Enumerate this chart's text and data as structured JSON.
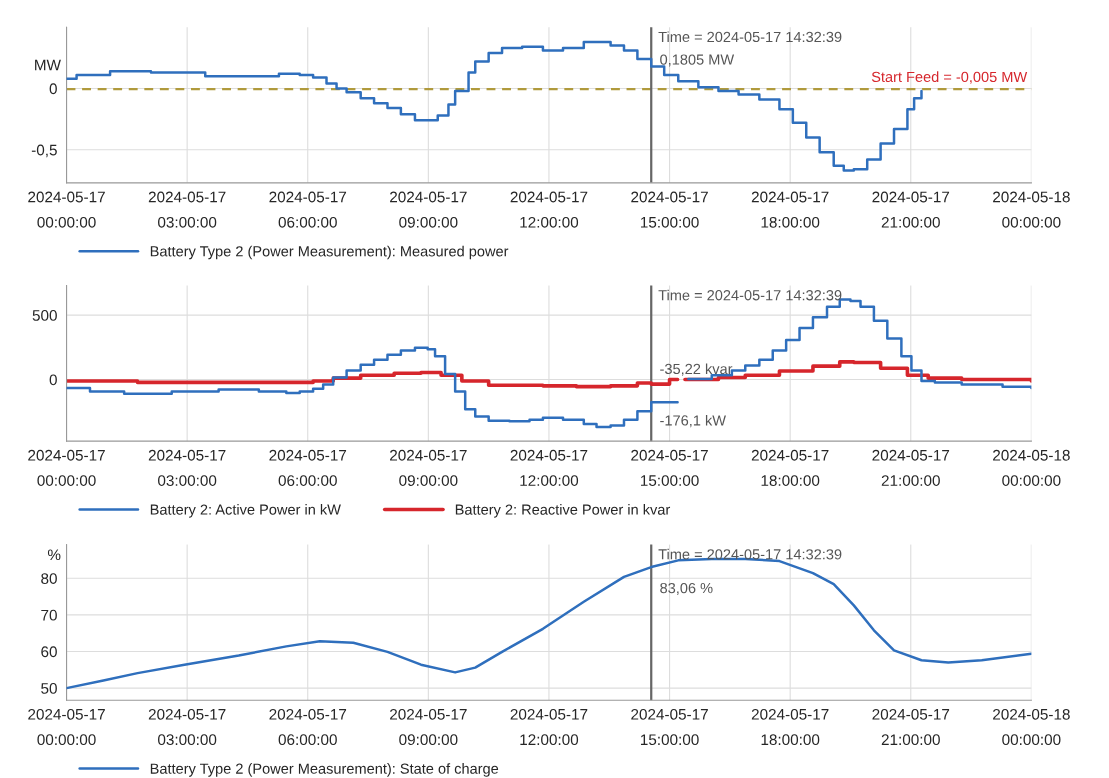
{
  "chart_data": [
    {
      "type": "step",
      "ylabel": "MW",
      "xlim": [
        "2024-05-17T00:00",
        "2024-05-18T00:00"
      ],
      "ylim": [
        -0.77,
        0.5
      ],
      "xticks": [
        {
          "value": "2024-05-17T00:00",
          "label": "2024-05-17\n00:00:00"
        },
        {
          "value": "2024-05-17T03:00",
          "label": "2024-05-17\n03:00:00"
        },
        {
          "value": "2024-05-17T06:00",
          "label": "2024-05-17\n06:00:00"
        },
        {
          "value": "2024-05-17T09:00",
          "label": "2024-05-17\n09:00:00"
        },
        {
          "value": "2024-05-17T12:00",
          "label": "2024-05-17\n12:00:00"
        },
        {
          "value": "2024-05-17T15:00",
          "label": "2024-05-17\n15:00:00"
        },
        {
          "value": "2024-05-17T18:00",
          "label": "2024-05-17\n18:00:00"
        },
        {
          "value": "2024-05-17T21:00",
          "label": "2024-05-17\n21:00:00"
        },
        {
          "value": "2024-05-18T00:00",
          "label": "2024-05-18\n00:00:00"
        }
      ],
      "yticks": [
        {
          "value": -0.5,
          "label": "-0,5"
        },
        0
      ],
      "grid": true,
      "legend": "bottom left",
      "series": [
        {
          "name": "Battery Type 2 (Power Measurement): Measured power",
          "color": "#2f6fbd",
          "x": [
            "2024-05-17T00:00",
            "2024-05-17T00:15",
            "2024-05-17T01:05",
            "2024-05-17T02:06",
            "2024-05-17T03:27",
            "2024-05-17T04:27",
            "2024-05-17T05:17",
            "2024-05-17T05:48",
            "2024-05-17T06:08",
            "2024-05-17T06:28",
            "2024-05-17T06:43",
            "2024-05-17T06:58",
            "2024-05-17T07:19",
            "2024-05-17T07:39",
            "2024-05-17T07:59",
            "2024-05-17T08:19",
            "2024-05-17T08:40",
            "2024-05-17T08:59",
            "2024-05-17T09:14",
            "2024-05-17T09:30",
            "2024-05-17T09:40",
            "2024-05-17T10:00",
            "2024-05-17T10:10",
            "2024-05-17T10:30",
            "2024-05-17T10:50",
            "2024-05-17T11:20",
            "2024-05-17T11:51",
            "2024-05-17T12:21",
            "2024-05-17T12:52",
            "2024-05-17T13:11",
            "2024-05-17T13:32",
            "2024-05-17T13:52",
            "2024-05-17T14:12",
            "2024-05-17T14:32:39",
            "2024-05-17T14:52",
            "2024-05-17T15:13",
            "2024-05-17T15:43",
            "2024-05-17T16:13",
            "2024-05-17T16:43",
            "2024-05-17T17:14",
            "2024-05-17T17:44",
            "2024-05-17T18:04",
            "2024-05-17T18:24",
            "2024-05-17T18:44",
            "2024-05-17T19:05",
            "2024-05-17T19:20",
            "2024-05-17T19:35",
            "2024-05-17T19:55",
            "2024-05-17T20:15",
            "2024-05-17T20:35",
            "2024-05-17T20:55",
            "2024-05-17T21:05",
            "2024-05-17T21:16"
          ],
          "values": [
            0.08,
            0.11,
            0.14,
            0.13,
            0.1,
            0.1,
            0.12,
            0.11,
            0.09,
            0.04,
            0,
            -0.03,
            -0.08,
            -0.12,
            -0.16,
            -0.21,
            -0.26,
            -0.26,
            -0.22,
            -0.13,
            -0.02,
            0.13,
            0.22,
            0.29,
            0.33,
            0.34,
            0.31,
            0.33,
            0.38,
            0.38,
            0.35,
            0.31,
            0.24,
            0.1805,
            0.11,
            0.06,
            0.01,
            -0.02,
            -0.05,
            -0.09,
            -0.17,
            -0.28,
            -0.4,
            -0.52,
            -0.63,
            -0.67,
            -0.66,
            -0.58,
            -0.45,
            -0.33,
            -0.17,
            -0.08,
            -0.02
          ]
        }
      ],
      "ref_lines": [
        {
          "axis": "y",
          "value": -0.005,
          "label": "Start Feed = -0,005 MW",
          "color": "#b09a3c",
          "line_style": "dashed"
        },
        {
          "axis": "x",
          "value": "2024-05-17T14:32:39",
          "label": "Time = 2024-05-17 14:32:39",
          "color": "#666666",
          "line_style": "solid"
        }
      ],
      "annotations": [
        {
          "text": "0,1805 MW",
          "x": "2024-05-17T14:32:39",
          "y": 0.1805
        }
      ]
    },
    {
      "type": "step",
      "xlim": [
        "2024-05-17T00:00",
        "2024-05-18T00:00"
      ],
      "ylim": [
        -478,
        730
      ],
      "xticks": [
        {
          "value": "2024-05-17T00:00",
          "label": "2024-05-17\n00:00:00"
        },
        {
          "value": "2024-05-17T03:00",
          "label": "2024-05-17\n03:00:00"
        },
        {
          "value": "2024-05-17T06:00",
          "label": "2024-05-17\n06:00:00"
        },
        {
          "value": "2024-05-17T09:00",
          "label": "2024-05-17\n09:00:00"
        },
        {
          "value": "2024-05-17T12:00",
          "label": "2024-05-17\n12:00:00"
        },
        {
          "value": "2024-05-17T15:00",
          "label": "2024-05-17\n15:00:00"
        },
        {
          "value": "2024-05-17T18:00",
          "label": "2024-05-17\n18:00:00"
        },
        {
          "value": "2024-05-17T21:00",
          "label": "2024-05-17\n21:00:00"
        },
        {
          "value": "2024-05-18T00:00",
          "label": "2024-05-18\n00:00:00"
        }
      ],
      "yticks": [
        0,
        500
      ],
      "grid": true,
      "legend": "bottom left",
      "series": [
        {
          "name": "Battery 2: Active Power in kW",
          "color": "#2f6fbd",
          "x": [
            "2024-05-17T00:00",
            "2024-05-17T00:35",
            "2024-05-17T01:26",
            "2024-05-17T02:37",
            "2024-05-17T03:47",
            "2024-05-17T04:47",
            "2024-05-17T05:28",
            "2024-05-17T05:48",
            "2024-05-17T06:08",
            "2024-05-17T06:23",
            "2024-05-17T06:38",
            "2024-05-17T06:58",
            "2024-05-17T07:19",
            "2024-05-17T07:39",
            "2024-05-17T07:59",
            "2024-05-17T08:19",
            "2024-05-17T08:40",
            "2024-05-17T08:59",
            "2024-05-17T09:10",
            "2024-05-17T09:25",
            "2024-05-17T09:40",
            "2024-05-17T09:55",
            "2024-05-17T10:10",
            "2024-05-17T10:30",
            "2024-05-17T11:01",
            "2024-05-17T11:31",
            "2024-05-17T11:51",
            "2024-05-17T12:21",
            "2024-05-17T12:52",
            "2024-05-17T13:11",
            "2024-05-17T13:32",
            "2024-05-17T13:52",
            "2024-05-17T14:12",
            "2024-05-17T14:32:39",
            "2024-05-17T14:47",
            "2024-05-17T15:12",
            "2024-05-17T15:28",
            "2024-05-17T16:03",
            "2024-05-17T16:33",
            "2024-05-17T16:53",
            "2024-05-17T17:14",
            "2024-05-17T17:34",
            "2024-05-17T17:54",
            "2024-05-17T18:14",
            "2024-05-17T18:34",
            "2024-05-17T18:55",
            "2024-05-17T19:14",
            "2024-05-17T19:30",
            "2024-05-17T19:45",
            "2024-05-17T20:05",
            "2024-05-17T20:25",
            "2024-05-17T20:46",
            "2024-05-17T21:01",
            "2024-05-17T21:16",
            "2024-05-17T21:36",
            "2024-05-17T22:16",
            "2024-05-17T23:17",
            "2024-05-18T00:00"
          ],
          "values": [
            -66,
            -93,
            -110,
            -93,
            -77,
            -93,
            -104,
            -93,
            -71,
            -38,
            16,
            71,
            115,
            154,
            192,
            225,
            247,
            236,
            181,
            44,
            -93,
            -231,
            -286,
            -319,
            -324,
            -313,
            -297,
            -313,
            -346,
            -368,
            -357,
            -313,
            -247,
            -176.1,
            -176,
            null,
            5,
            33,
            71,
            110,
            154,
            225,
            308,
            401,
            484,
            566,
            621,
            610,
            566,
            456,
            319,
            181,
            71,
            -11,
            -22,
            -38,
            -55,
            -66
          ]
        },
        {
          "name": "Battery 2: Reactive Power in kvar",
          "color": "#d6262c",
          "x": [
            "2024-05-17T00:00",
            "2024-05-17T01:46",
            "2024-05-17T03:27",
            "2024-05-17T05:08",
            "2024-05-17T06:08",
            "2024-05-17T06:38",
            "2024-05-17T07:19",
            "2024-05-17T08:09",
            "2024-05-17T08:49",
            "2024-05-17T09:19",
            "2024-05-17T09:50",
            "2024-05-17T10:30",
            "2024-05-17T11:51",
            "2024-05-17T12:41",
            "2024-05-17T13:32",
            "2024-05-17T14:12",
            "2024-05-17T14:32:39",
            "2024-05-17T15:00",
            "2024-05-17T15:12",
            "2024-05-17T15:23",
            "2024-05-17T16:13",
            "2024-05-17T16:53",
            "2024-05-17T17:44",
            "2024-05-17T18:34",
            "2024-05-17T19:14",
            "2024-05-17T19:35",
            "2024-05-17T20:15",
            "2024-05-17T20:55",
            "2024-05-17T21:26",
            "2024-05-17T22:16",
            "2024-05-18T00:00"
          ],
          "values": [
            -11,
            -22,
            -22,
            -22,
            -11,
            11,
            33,
            49,
            55,
            33,
            -11,
            -44,
            -49,
            -55,
            -49,
            -27,
            -35.22,
            0,
            null,
            0,
            16,
            33,
            66,
            104,
            137,
            132,
            88,
            33,
            11,
            0,
            -11
          ]
        }
      ],
      "ref_lines": [
        {
          "axis": "x",
          "value": "2024-05-17T14:32:39",
          "label": "Time = 2024-05-17 14:32:39",
          "color": "#666666",
          "line_style": "solid"
        }
      ],
      "annotations": [
        {
          "text": "-35,22 kvar",
          "x": "2024-05-17T14:32:39",
          "y": -35.22
        },
        {
          "text": "-176,1 kW",
          "x": "2024-05-17T14:32:39",
          "y": -176.1
        }
      ]
    },
    {
      "type": "line",
      "ylabel": "%",
      "xlim": [
        "2024-05-17T00:00",
        "2024-05-18T00:00"
      ],
      "ylim": [
        46.7,
        89.2
      ],
      "xticks": [
        {
          "value": "2024-05-17T00:00",
          "label": "2024-05-17\n00:00:00"
        },
        {
          "value": "2024-05-17T03:00",
          "label": "2024-05-17\n03:00:00"
        },
        {
          "value": "2024-05-17T06:00",
          "label": "2024-05-17\n06:00:00"
        },
        {
          "value": "2024-05-17T09:00",
          "label": "2024-05-17\n09:00:00"
        },
        {
          "value": "2024-05-17T12:00",
          "label": "2024-05-17\n12:00:00"
        },
        {
          "value": "2024-05-17T15:00",
          "label": "2024-05-17\n15:00:00"
        },
        {
          "value": "2024-05-17T18:00",
          "label": "2024-05-17\n18:00:00"
        },
        {
          "value": "2024-05-17T21:00",
          "label": "2024-05-17\n21:00:00"
        },
        {
          "value": "2024-05-18T00:00",
          "label": "2024-05-18\n00:00:00"
        }
      ],
      "yticks": [
        50,
        60,
        70,
        80
      ],
      "grid": true,
      "legend": "bottom left",
      "series": [
        {
          "name": "Battery Type 2 (Power Measurement): State of charge",
          "color": "#2f6fbd",
          "x": [
            "2024-05-17T00:00",
            "2024-05-17T00:55",
            "2024-05-17T01:46",
            "2024-05-17T02:56",
            "2024-05-17T04:17",
            "2024-05-17T05:28",
            "2024-05-17T06:18",
            "2024-05-17T07:08",
            "2024-05-17T07:59",
            "2024-05-17T08:49",
            "2024-05-17T09:40",
            "2024-05-17T10:10",
            "2024-05-17T10:50",
            "2024-05-17T11:51",
            "2024-05-17T12:52",
            "2024-05-17T13:52",
            "2024-05-17T14:32:39",
            "2024-05-17T15:13",
            "2024-05-17T16:03",
            "2024-05-17T16:53",
            "2024-05-17T17:44",
            "2024-05-17T18:34",
            "2024-05-17T19:05",
            "2024-05-17T19:35",
            "2024-05-17T20:05",
            "2024-05-17T20:35",
            "2024-05-17T21:16",
            "2024-05-17T21:56",
            "2024-05-17T22:46",
            "2024-05-18T00:00"
          ],
          "values": [
            50,
            52.1,
            54.1,
            56.4,
            58.9,
            61.4,
            62.8,
            62.4,
            59.9,
            56.4,
            54.3,
            55.6,
            59.9,
            66.2,
            73.6,
            80.4,
            83.06,
            84.9,
            85.3,
            85.3,
            84.7,
            81.4,
            78.4,
            72.6,
            65.8,
            60.3,
            57.6,
            57.0,
            57.6,
            59.4
          ]
        }
      ],
      "ref_lines": [
        {
          "axis": "x",
          "value": "2024-05-17T14:32:39",
          "label": "Time = 2024-05-17 14:32:39",
          "color": "#666666",
          "line_style": "solid"
        }
      ],
      "annotations": [
        {
          "text": "83,06 %",
          "x": "2024-05-17T14:32:39",
          "y": 83.06
        }
      ]
    }
  ]
}
